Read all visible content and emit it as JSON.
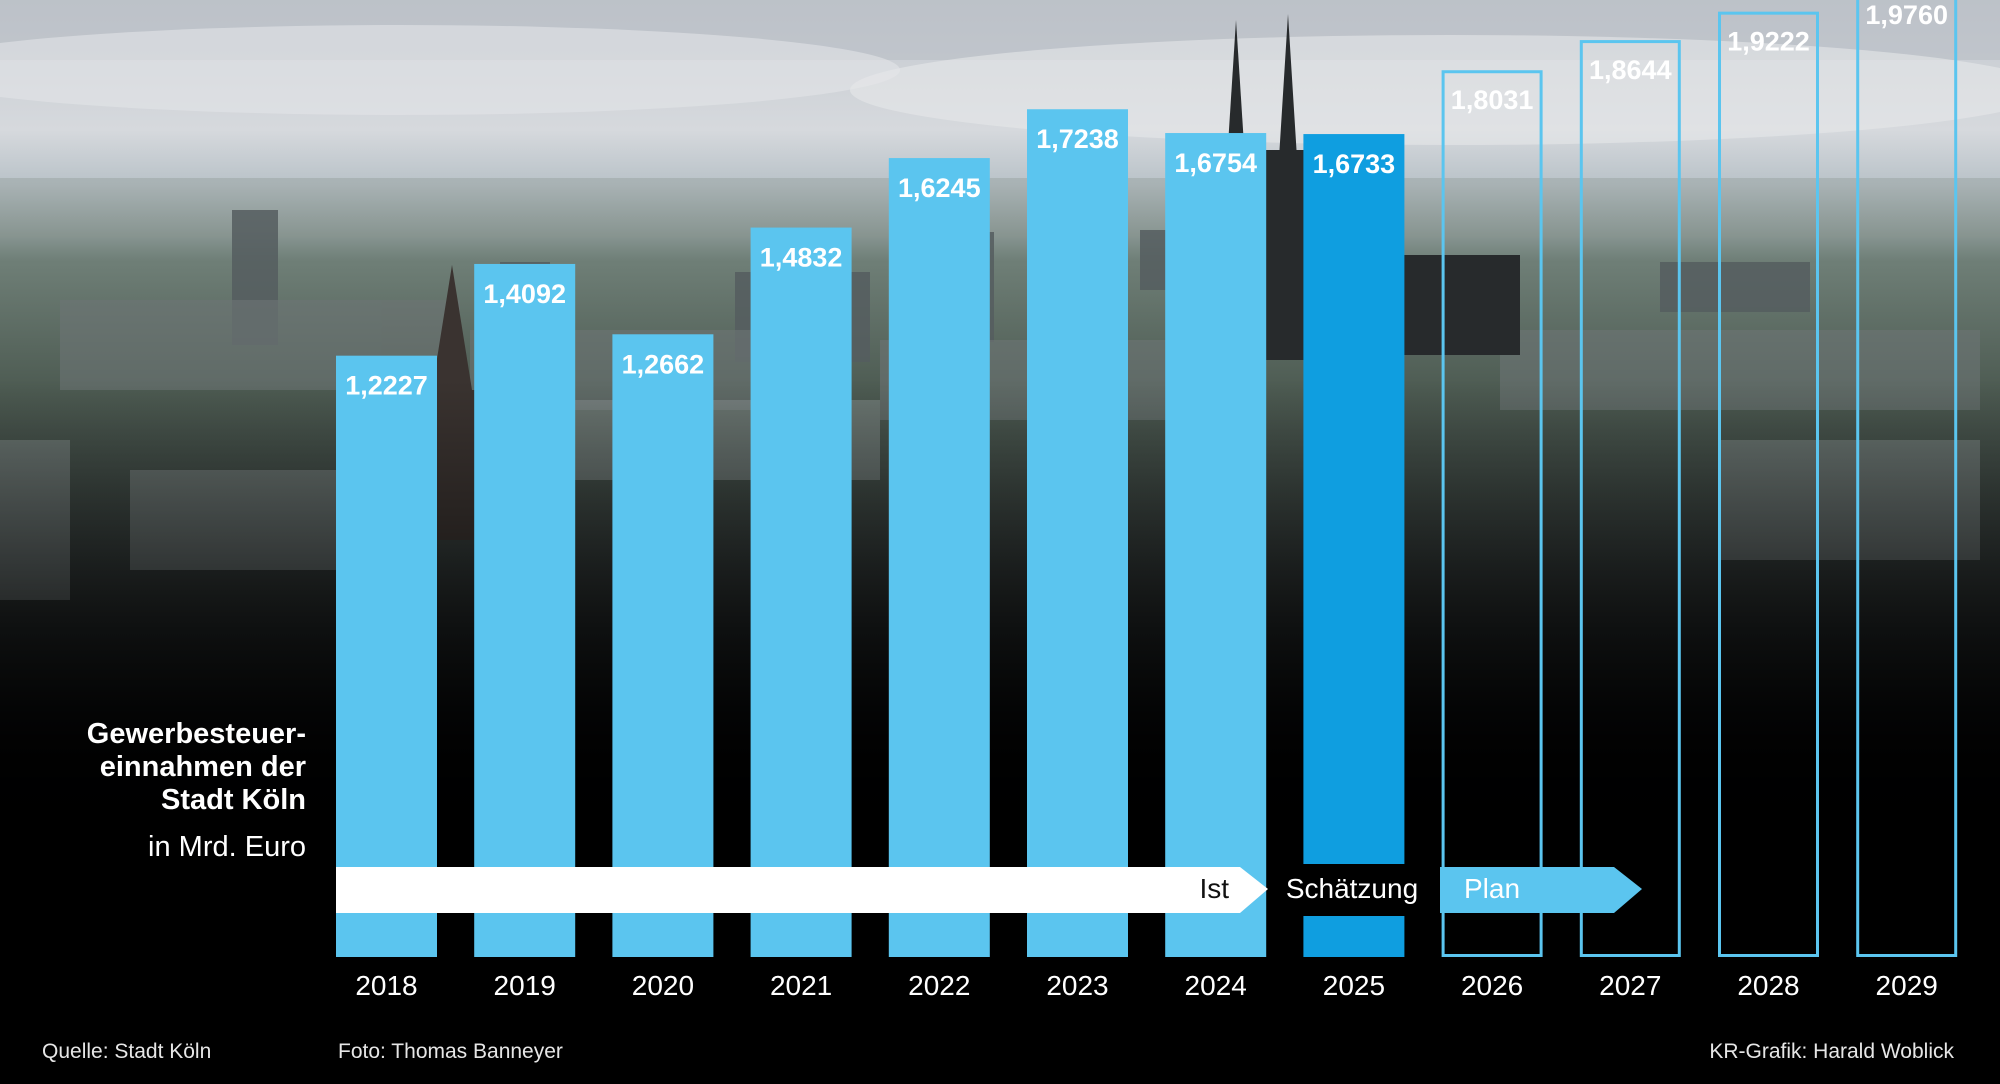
{
  "chart_data": {
    "type": "bar",
    "title": [
      "Gewerbesteuer-",
      "einnahmen der",
      "Stadt Köln"
    ],
    "unit": "in Mrd. Euro",
    "categories": [
      "2018",
      "2019",
      "2020",
      "2021",
      "2022",
      "2023",
      "2024",
      "2025",
      "2026",
      "2027",
      "2028",
      "2029"
    ],
    "values": [
      1.2227,
      1.4092,
      1.2662,
      1.4832,
      1.6245,
      1.7238,
      1.6754,
      1.6733,
      1.8031,
      1.8644,
      1.9222,
      1.976
    ],
    "value_labels": [
      "1,2227",
      "1,4092",
      "1,2662",
      "1,4832",
      "1,6245",
      "1,7238",
      "1,6754",
      "1,6733",
      "1,8031",
      "1,8644",
      "1,9222",
      "1,9760"
    ],
    "phases": [
      {
        "label": "Ist",
        "from": "2018",
        "to": "2024"
      },
      {
        "label": "Schätzung",
        "from": "2025",
        "to": "2025"
      },
      {
        "label": "Plan",
        "from": "2026",
        "to": "2029"
      }
    ],
    "colors": {
      "actual": "#5bc5ef",
      "estimate": "#0f9ee0",
      "plan_outline": "#5bc5ef",
      "arrow": "#ffffff",
      "plan_arrow": "#5bc5ef"
    }
  },
  "footer": {
    "source": "Quelle: Stadt Köln",
    "photo": "Foto: Thomas Banneyer",
    "credit": "KR-Grafik: Harald Woblick"
  }
}
